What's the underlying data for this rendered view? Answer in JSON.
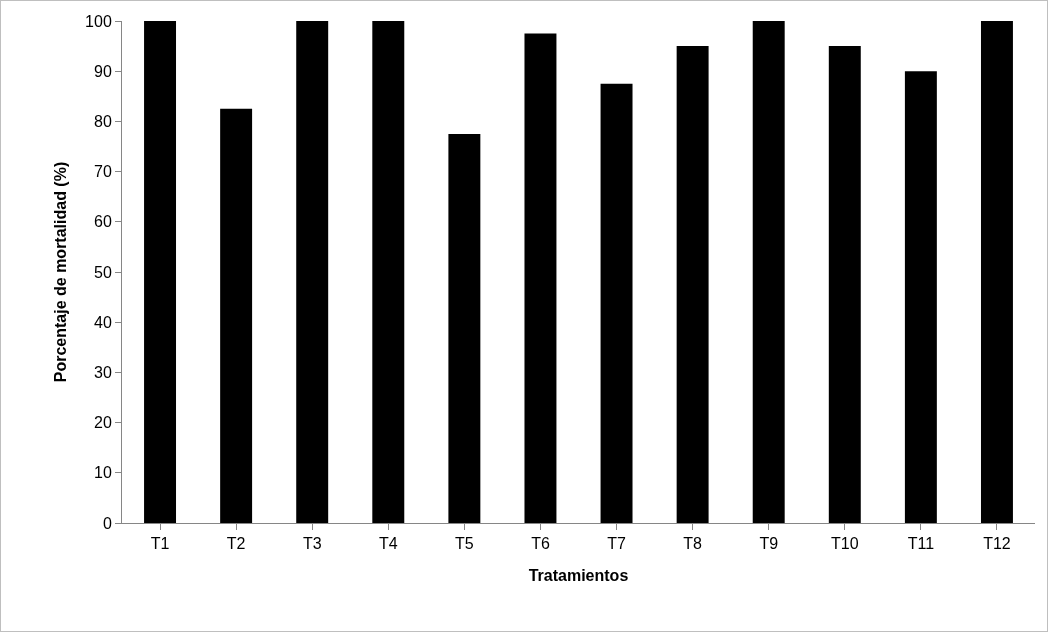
{
  "chart_data": {
    "type": "bar",
    "xlabel": "Tratamientos",
    "ylabel": "Porcentaje de mortalidad (%)",
    "categories": [
      "T1",
      "T2",
      "T3",
      "T4",
      "T5",
      "T6",
      "T7",
      "T8",
      "T9",
      "T10",
      "T11",
      "T12"
    ],
    "values": [
      100,
      82.5,
      100,
      100,
      77.5,
      97.5,
      87.5,
      95,
      100,
      95,
      90,
      100
    ],
    "color": "#000000",
    "ylim": [
      0,
      100
    ],
    "yticks": [
      0,
      10,
      20,
      30,
      40,
      50,
      60,
      70,
      80,
      90,
      100
    ],
    "grid": false,
    "legend": false
  }
}
